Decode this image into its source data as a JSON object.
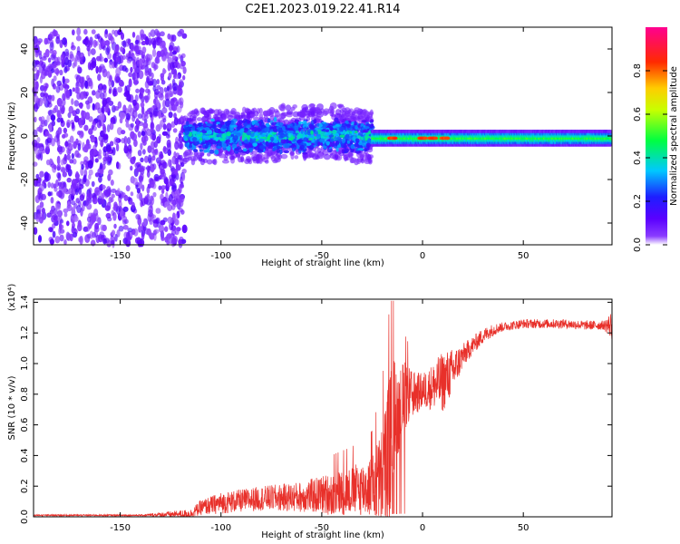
{
  "title": "C2E1.2023.019.22.41.R14",
  "chart_data": [
    {
      "type": "heatmap",
      "xlabel": "Height of straight line (km)",
      "ylabel": "Frequency (Hz)",
      "xlim": [
        -193,
        94
      ],
      "ylim": [
        -50,
        50
      ],
      "x_ticks": [
        -150,
        -100,
        -50,
        0,
        50
      ],
      "x_tick_labels": [
        "-150",
        "-100",
        "-50",
        "0",
        "50"
      ],
      "y_ticks": [
        -40,
        -20,
        0,
        20,
        40
      ],
      "y_tick_labels": [
        "-40",
        "-20",
        "0",
        "20",
        "40"
      ],
      "colorbar": {
        "label": "Normalized spectral amplitude",
        "range": [
          0,
          1
        ],
        "ticks": [
          0.0,
          0.2,
          0.4,
          0.6,
          0.8
        ],
        "tick_labels": [
          "0.0",
          "0.2",
          "0.4",
          "0.6",
          "0.8"
        ],
        "colormap": "rainbow (purple-blue-cyan-green-yellow-red-magenta)"
      },
      "regions": [
        {
          "x_range": [
            -193,
            -118
          ],
          "freq_range": [
            -50,
            48
          ],
          "amplitude": "low (0.05-0.15)",
          "pattern": "scattered noise"
        },
        {
          "x_range": [
            -118,
            -25
          ],
          "freq_center": 0,
          "freq_halfwidth": 8,
          "amplitude": "0.2-0.45"
        },
        {
          "x_range": [
            -25,
            94
          ],
          "freq_center": -1,
          "freq_halfwidth": 3,
          "amplitude": "0.4-1.0",
          "peaks_near": [
            -15,
            0,
            5,
            11
          ]
        }
      ],
      "grid": false,
      "legend": "colorbar at right"
    },
    {
      "type": "line",
      "xlabel": "Height of straight line (km)",
      "ylabel": "SNR (10 * v/v)",
      "y_multiplier": "(x10⁴)",
      "xlim": [
        -193,
        94
      ],
      "ylim": [
        0,
        1.42
      ],
      "x_ticks": [
        -150,
        -100,
        -50,
        0,
        50
      ],
      "x_tick_labels": [
        "-150",
        "-100",
        "-50",
        "0",
        "50"
      ],
      "y_ticks": [
        0.0,
        0.2,
        0.4,
        0.6,
        0.8,
        1.0,
        1.2,
        1.4
      ],
      "y_tick_labels": [
        "0.0",
        "0.2",
        "0.4",
        "0.6",
        "0.8",
        "1.0",
        "1.2",
        "1.4"
      ],
      "line_color": "#e8302a",
      "envelope": {
        "x": [
          -193,
          -140,
          -115,
          -110,
          -100,
          -80,
          -60,
          -45,
          -35,
          -25,
          -20,
          -17,
          -15,
          -12,
          -10,
          -5,
          0,
          5,
          10,
          15,
          20,
          25,
          30,
          35,
          40,
          50,
          60,
          70,
          80,
          90,
          94
        ],
        "mean": [
          0.01,
          0.01,
          0.02,
          0.06,
          0.09,
          0.12,
          0.13,
          0.15,
          0.17,
          0.2,
          0.25,
          0.4,
          0.55,
          0.72,
          0.78,
          0.8,
          0.82,
          0.85,
          0.88,
          0.95,
          1.05,
          1.12,
          1.18,
          1.22,
          1.24,
          1.26,
          1.26,
          1.26,
          1.25,
          1.25,
          1.25
        ],
        "amplitude": [
          0.005,
          0.005,
          0.03,
          0.05,
          0.07,
          0.08,
          0.1,
          0.14,
          0.16,
          0.2,
          0.35,
          0.5,
          0.5,
          0.3,
          0.25,
          0.15,
          0.12,
          0.15,
          0.2,
          0.15,
          0.08,
          0.06,
          0.05,
          0.04,
          0.03,
          0.03,
          0.03,
          0.03,
          0.03,
          0.03,
          0.1
        ]
      },
      "grid": false,
      "legend": "none"
    }
  ]
}
